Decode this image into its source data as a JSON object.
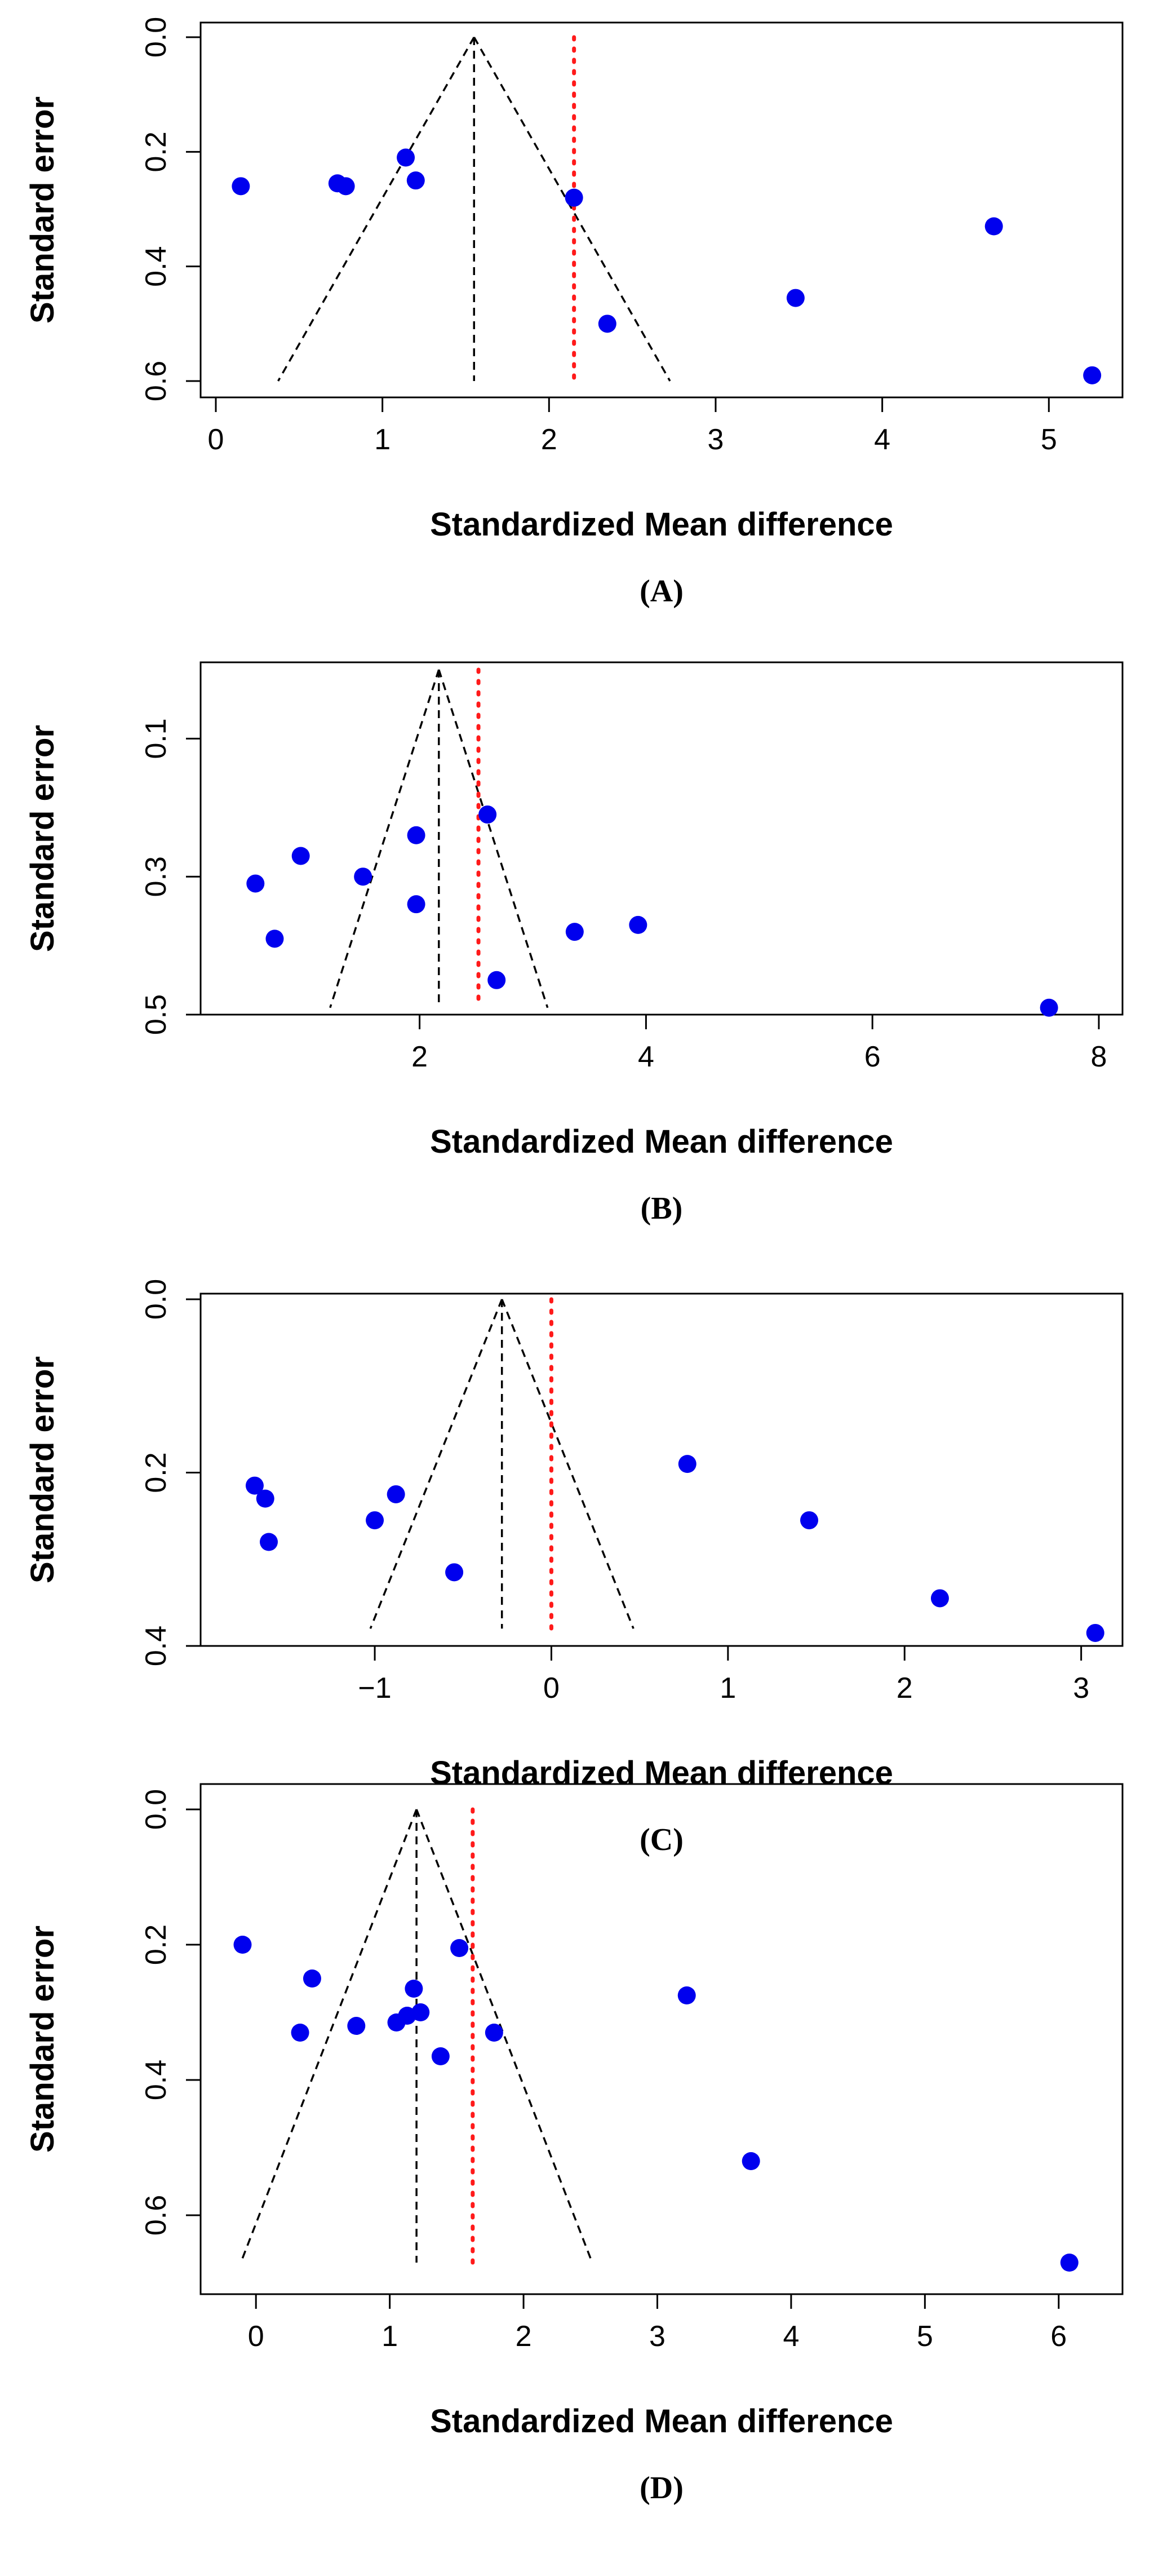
{
  "colors": {
    "points": "#0000ee",
    "overall_line": "#ff1a1a",
    "funnel": "#000000"
  },
  "chart_data": [
    {
      "panel_label": "(A)",
      "type": "scatter",
      "subtype": "funnel-plot",
      "xlabel": "Standardized Mean difference",
      "ylabel": "Standard error",
      "xlim": [
        0,
        5.3
      ],
      "ylim": [
        0.6,
        0.0
      ],
      "xticks": [
        0,
        1,
        2,
        3,
        4,
        5
      ],
      "xtick_labels": [
        "0",
        "1",
        "2",
        "3",
        "4",
        "5"
      ],
      "yticks": [
        0.0,
        0.2,
        0.4,
        0.6
      ],
      "ytick_labels": [
        "0.0",
        "0.2",
        "0.4",
        "0.6"
      ],
      "funnel_center": 1.55,
      "funnel_se_max": 0.6,
      "overall_effect": 2.15,
      "points": [
        {
          "x": 0.15,
          "y": 0.26
        },
        {
          "x": 0.73,
          "y": 0.255
        },
        {
          "x": 0.78,
          "y": 0.26
        },
        {
          "x": 1.14,
          "y": 0.21
        },
        {
          "x": 1.2,
          "y": 0.25
        },
        {
          "x": 2.15,
          "y": 0.28
        },
        {
          "x": 2.35,
          "y": 0.5
        },
        {
          "x": 3.48,
          "y": 0.455
        },
        {
          "x": 4.67,
          "y": 0.33
        },
        {
          "x": 5.26,
          "y": 0.59
        }
      ]
    },
    {
      "panel_label": "(B)",
      "type": "scatter",
      "subtype": "funnel-plot",
      "xlabel": "Standardized Mean difference",
      "ylabel": "Standard error",
      "xlim": [
        0.2,
        8.0
      ],
      "ylim": [
        0.5,
        0.0
      ],
      "xticks": [
        2,
        4,
        6,
        8
      ],
      "xtick_labels": [
        "2",
        "4",
        "6",
        "8"
      ],
      "yticks": [
        0.1,
        0.3,
        0.5
      ],
      "ytick_labels": [
        "0.1",
        "0.3",
        "0.5"
      ],
      "funnel_center": 2.17,
      "funnel_se_max": 0.49,
      "overall_effect": 2.52,
      "points": [
        {
          "x": 0.55,
          "y": 0.31
        },
        {
          "x": 0.72,
          "y": 0.39
        },
        {
          "x": 0.95,
          "y": 0.27
        },
        {
          "x": 1.5,
          "y": 0.3
        },
        {
          "x": 1.97,
          "y": 0.24
        },
        {
          "x": 1.97,
          "y": 0.34
        },
        {
          "x": 2.6,
          "y": 0.21
        },
        {
          "x": 2.68,
          "y": 0.45
        },
        {
          "x": 3.37,
          "y": 0.38
        },
        {
          "x": 3.93,
          "y": 0.37
        },
        {
          "x": 7.56,
          "y": 0.49
        }
      ]
    },
    {
      "panel_label": "(C)",
      "type": "scatter",
      "subtype": "funnel-plot",
      "xlabel": "Standardized Mean difference",
      "ylabel": "Standard error",
      "xlim": [
        -1.9,
        3.1
      ],
      "ylim": [
        0.4,
        0.0
      ],
      "xticks": [
        -1,
        0,
        1,
        2,
        3
      ],
      "xtick_labels": [
        "−1",
        "0",
        "1",
        "2",
        "3"
      ],
      "yticks": [
        0.0,
        0.2,
        0.4
      ],
      "ytick_labels": [
        "0.0",
        "0.2",
        "0.4"
      ],
      "funnel_center": -0.28,
      "funnel_se_max": 0.38,
      "overall_effect": 0.0,
      "points": [
        {
          "x": -1.68,
          "y": 0.215
        },
        {
          "x": -1.62,
          "y": 0.23
        },
        {
          "x": -1.6,
          "y": 0.28
        },
        {
          "x": -1.0,
          "y": 0.255
        },
        {
          "x": -0.88,
          "y": 0.225
        },
        {
          "x": -0.55,
          "y": 0.315
        },
        {
          "x": 0.77,
          "y": 0.19
        },
        {
          "x": 1.46,
          "y": 0.255
        },
        {
          "x": 2.2,
          "y": 0.345
        },
        {
          "x": 3.08,
          "y": 0.385
        }
      ]
    },
    {
      "panel_label": "(D)",
      "type": "scatter",
      "subtype": "funnel-plot",
      "xlabel": "Standardized Mean difference",
      "ylabel": "Standard error",
      "xlim": [
        -0.3,
        6.3
      ],
      "ylim": [
        0.7,
        0.0
      ],
      "xticks": [
        0,
        1,
        2,
        3,
        4,
        5,
        6
      ],
      "xtick_labels": [
        "0",
        "1",
        "2",
        "3",
        "4",
        "5",
        "6"
      ],
      "yticks": [
        0.0,
        0.2,
        0.4,
        0.6
      ],
      "ytick_labels": [
        "0.0",
        "0.2",
        "0.4",
        "0.6"
      ],
      "funnel_center": 1.2,
      "funnel_se_max": 0.67,
      "overall_effect": 1.62,
      "points": [
        {
          "x": -0.1,
          "y": 0.2
        },
        {
          "x": 0.33,
          "y": 0.33
        },
        {
          "x": 0.42,
          "y": 0.25
        },
        {
          "x": 0.75,
          "y": 0.32
        },
        {
          "x": 1.05,
          "y": 0.315
        },
        {
          "x": 1.13,
          "y": 0.305
        },
        {
          "x": 1.18,
          "y": 0.265
        },
        {
          "x": 1.23,
          "y": 0.3
        },
        {
          "x": 1.38,
          "y": 0.365
        },
        {
          "x": 1.52,
          "y": 0.205
        },
        {
          "x": 1.78,
          "y": 0.33
        },
        {
          "x": 3.22,
          "y": 0.275
        },
        {
          "x": 3.7,
          "y": 0.52
        },
        {
          "x": 6.08,
          "y": 0.67
        }
      ]
    }
  ]
}
